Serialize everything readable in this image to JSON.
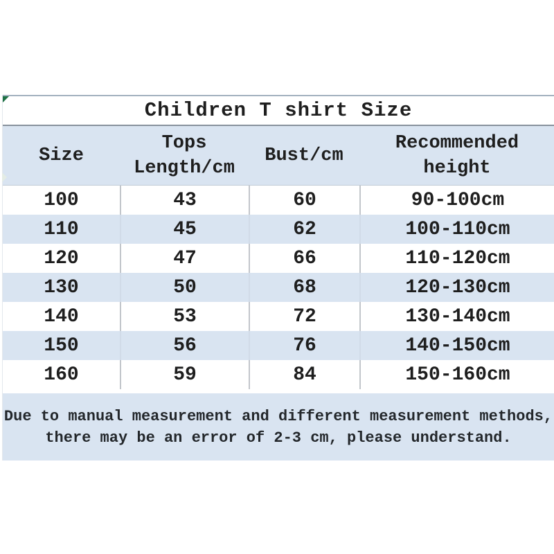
{
  "title": "Children T shirt Size",
  "table": {
    "headers": [
      [
        "Size"
      ],
      [
        "Tops",
        "Length/cm"
      ],
      [
        "Bust/cm"
      ],
      [
        "Recommended",
        "height"
      ]
    ],
    "rows": [
      [
        "100",
        "43",
        "60",
        "90-100cm"
      ],
      [
        "110",
        "45",
        "62",
        "100-110cm"
      ],
      [
        "120",
        "47",
        "66",
        "110-120cm"
      ],
      [
        "130",
        "50",
        "68",
        "120-130cm"
      ],
      [
        "140",
        "53",
        "72",
        "130-140cm"
      ],
      [
        "150",
        "56",
        "76",
        "140-150cm"
      ],
      [
        "160",
        "59",
        "84",
        "150-160cm"
      ]
    ]
  },
  "footer": {
    "line1": "Due to manual measurement and different measurement methods,",
    "line2": "there may be an error of 2-3 cm, please understand."
  },
  "colors": {
    "band_blue": "#d9e4f1",
    "marker_green": "#1e7145",
    "border_gray": "#87919c",
    "text": "#1e1e1e"
  },
  "icons": {
    "corner_marker": "green-triangle-icon"
  }
}
